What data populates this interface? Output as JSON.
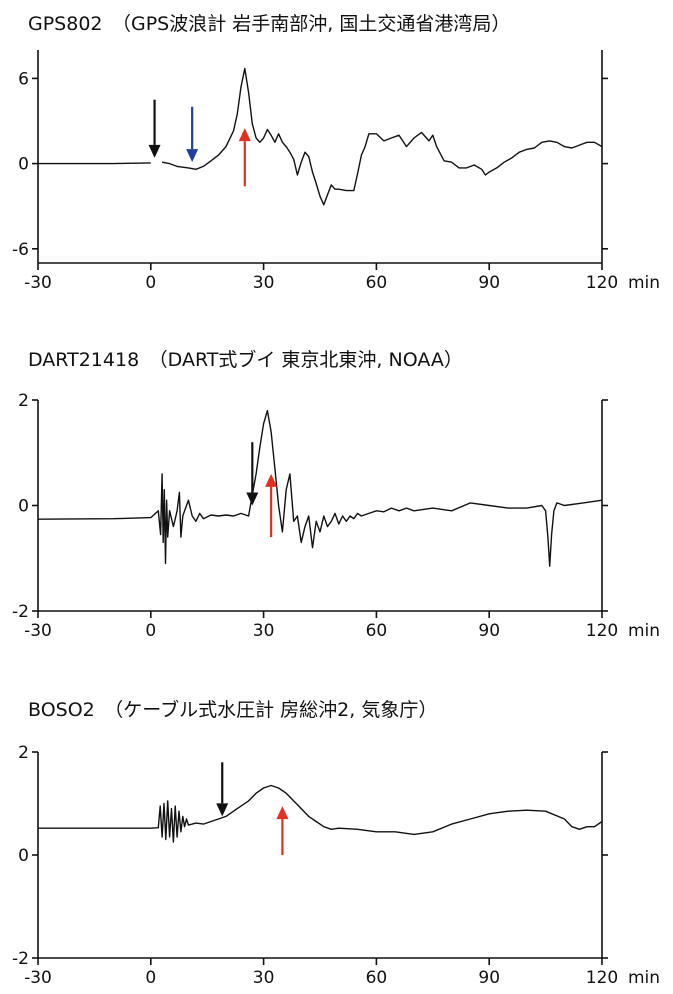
{
  "chart_data": [
    {
      "type": "line",
      "title": "GPS802　（GPS波浪計 岩手南部沖, 国土交通省港湾局）",
      "x_unit": "min",
      "xlim": [
        -30,
        120
      ],
      "ylim": [
        -7,
        8
      ],
      "x_ticks": [
        -30,
        0,
        30,
        60,
        90,
        120
      ],
      "y_ticks": [
        6,
        0,
        -6
      ],
      "x_tick_labels": [
        "-30",
        "0",
        "30",
        "60",
        "90",
        "120"
      ],
      "y_tick_labels": [
        "6",
        "0",
        "-6"
      ],
      "series": [
        {
          "x": [
            -30,
            -10,
            0
          ],
          "y": [
            0.0,
            0.0,
            0.05
          ]
        },
        {
          "x": [
            3,
            5,
            7,
            10,
            12,
            14,
            16,
            18,
            20,
            22,
            23,
            24,
            25,
            26,
            27,
            28,
            29,
            30,
            31,
            32,
            33,
            34,
            35,
            36,
            37,
            38,
            39,
            40,
            41,
            42,
            43,
            44,
            45,
            46,
            47,
            48,
            49,
            50,
            52,
            54,
            55,
            56,
            57,
            58,
            60,
            62,
            64,
            66,
            68,
            70,
            72,
            74,
            75,
            76,
            78,
            80,
            82,
            84,
            86,
            88,
            89,
            90,
            92,
            94,
            96,
            98,
            100,
            102,
            104,
            106,
            108,
            110,
            112,
            114,
            116,
            118,
            120
          ],
          "y": [
            0.1,
            0.0,
            -0.2,
            -0.3,
            -0.4,
            -0.2,
            0.2,
            0.6,
            1.2,
            2.3,
            3.5,
            5.4,
            6.7,
            5.0,
            2.8,
            1.8,
            1.5,
            1.8,
            2.4,
            2.0,
            1.5,
            2.1,
            1.5,
            1.2,
            0.8,
            0.3,
            -0.8,
            0.1,
            0.8,
            0.5,
            -0.6,
            -1.4,
            -2.3,
            -2.9,
            -2.2,
            -1.5,
            -1.8,
            -1.8,
            -1.9,
            -1.9,
            -0.7,
            0.6,
            1.2,
            2.1,
            2.1,
            1.6,
            1.8,
            2.0,
            1.2,
            1.8,
            2.2,
            1.6,
            2.0,
            1.2,
            0.2,
            0.1,
            -0.3,
            -0.3,
            -0.1,
            -0.4,
            -0.8,
            -0.6,
            -0.3,
            0.1,
            0.4,
            0.8,
            1.0,
            1.1,
            1.5,
            1.6,
            1.5,
            1.2,
            1.1,
            1.3,
            1.5,
            1.5,
            1.2
          ]
        }
      ],
      "annotations": [
        {
          "color": "#111111",
          "x": 1,
          "y_top": 4.5,
          "y_tip": 0.4
        },
        {
          "color": "#1f3fa0",
          "x": 11,
          "y_top": 4.0,
          "y_tip": 0.1
        },
        {
          "color": "#e03020",
          "x": 25,
          "y_top": -1.6,
          "y_tip": 2.5
        }
      ]
    },
    {
      "type": "line",
      "title": "DART21418　（DART式ブイ 東京北東沖, NOAA）",
      "x_unit": "min",
      "xlim": [
        -30,
        120
      ],
      "ylim": [
        -2,
        2
      ],
      "x_ticks": [
        -30,
        0,
        30,
        60,
        90,
        120
      ],
      "y_ticks": [
        2,
        0,
        -2
      ],
      "x_tick_labels": [
        "-30",
        "0",
        "30",
        "60",
        "90",
        "120"
      ],
      "y_tick_labels": [
        "2",
        "0",
        "-2"
      ],
      "series": [
        {
          "x": [
            -30,
            -10,
            0,
            2,
            2.6,
            3.0,
            3.3,
            3.6,
            3.9,
            4.2,
            4.5,
            5.0,
            6,
            7,
            7.6,
            8,
            8.5,
            9,
            10,
            11,
            12,
            13,
            14,
            16,
            18,
            20,
            22,
            24,
            26,
            27,
            28,
            29,
            30,
            31,
            32,
            33,
            34,
            35,
            36,
            37,
            38,
            39,
            40,
            41,
            42,
            43,
            44,
            45,
            46,
            47,
            48,
            49,
            50,
            51,
            52,
            53,
            54,
            55,
            56,
            58,
            60,
            62,
            64,
            66,
            68,
            70,
            75,
            80,
            85,
            90,
            95,
            100,
            104,
            105,
            105.6,
            106.1,
            106.6,
            107.2,
            108,
            110,
            115,
            120
          ],
          "y": [
            -0.26,
            -0.25,
            -0.23,
            -0.1,
            -0.55,
            0.6,
            -0.7,
            0.3,
            -1.1,
            0.1,
            -0.6,
            -0.1,
            -0.4,
            -0.1,
            0.25,
            -0.6,
            -0.2,
            -0.1,
            0.1,
            -0.2,
            -0.3,
            -0.15,
            -0.25,
            -0.18,
            -0.2,
            -0.18,
            -0.2,
            -0.15,
            -0.2,
            0.2,
            0.6,
            1.1,
            1.55,
            1.8,
            1.4,
            0.7,
            0.0,
            -0.5,
            0.3,
            0.6,
            -0.3,
            -0.2,
            -0.7,
            -0.4,
            -0.2,
            -0.8,
            -0.3,
            -0.5,
            -0.2,
            -0.4,
            -0.3,
            -0.15,
            -0.35,
            -0.2,
            -0.3,
            -0.2,
            -0.25,
            -0.15,
            -0.2,
            -0.15,
            -0.1,
            -0.12,
            -0.05,
            -0.1,
            -0.05,
            -0.1,
            -0.05,
            -0.1,
            0.05,
            0.0,
            -0.05,
            -0.05,
            0.0,
            -0.1,
            -0.6,
            -1.15,
            -0.55,
            -0.1,
            0.05,
            0.0,
            0.05,
            0.1
          ]
        }
      ],
      "annotations": [
        {
          "color": "#111111",
          "x": 27,
          "y_top": 1.2,
          "y_tip": 0.0
        },
        {
          "color": "#e03020",
          "x": 32,
          "y_top": -0.6,
          "y_tip": 0.6
        }
      ]
    },
    {
      "type": "line",
      "title": "BOSO2　（ケーブル式水圧計 房総沖2, 気象庁）",
      "x_unit": "min",
      "xlim": [
        -30,
        120
      ],
      "ylim": [
        -2,
        2
      ],
      "x_ticks": [
        -30,
        0,
        30,
        60,
        90,
        120
      ],
      "y_ticks": [
        2,
        0,
        -2
      ],
      "x_tick_labels": [
        "-30",
        "0",
        "30",
        "60",
        "90",
        "120"
      ],
      "y_tick_labels": [
        "2",
        "0",
        "-2"
      ],
      "series": [
        {
          "x": [
            -30,
            -10,
            0,
            2.0,
            2.5,
            3.0,
            3.5,
            4.0,
            4.5,
            5.0,
            5.5,
            6.0,
            6.5,
            7.0,
            7.5,
            8.0,
            8.5,
            9.0,
            9.5,
            10.0,
            11,
            12,
            14,
            16,
            18,
            20,
            22,
            24,
            26,
            28,
            30,
            32,
            34,
            36,
            38,
            40,
            42,
            44,
            46,
            48,
            50,
            55,
            60,
            65,
            70,
            75,
            80,
            85,
            90,
            95,
            100,
            105,
            110,
            112,
            114,
            116,
            118,
            120
          ],
          "y": [
            0.52,
            0.52,
            0.52,
            0.53,
            0.95,
            0.35,
            1.0,
            0.3,
            1.05,
            0.35,
            0.9,
            0.25,
            0.95,
            0.35,
            0.85,
            0.45,
            0.75,
            0.55,
            0.7,
            0.58,
            0.6,
            0.62,
            0.6,
            0.65,
            0.7,
            0.75,
            0.85,
            0.95,
            1.05,
            1.2,
            1.3,
            1.35,
            1.3,
            1.2,
            1.05,
            0.9,
            0.75,
            0.65,
            0.55,
            0.5,
            0.52,
            0.5,
            0.45,
            0.45,
            0.4,
            0.45,
            0.6,
            0.7,
            0.8,
            0.85,
            0.87,
            0.85,
            0.7,
            0.55,
            0.5,
            0.55,
            0.55,
            0.65
          ]
        }
      ],
      "annotations": [
        {
          "color": "#111111",
          "x": 19,
          "y_top": 1.8,
          "y_tip": 0.75
        },
        {
          "color": "#e03020",
          "x": 35,
          "y_top": 0.0,
          "y_tip": 0.95
        }
      ]
    }
  ]
}
